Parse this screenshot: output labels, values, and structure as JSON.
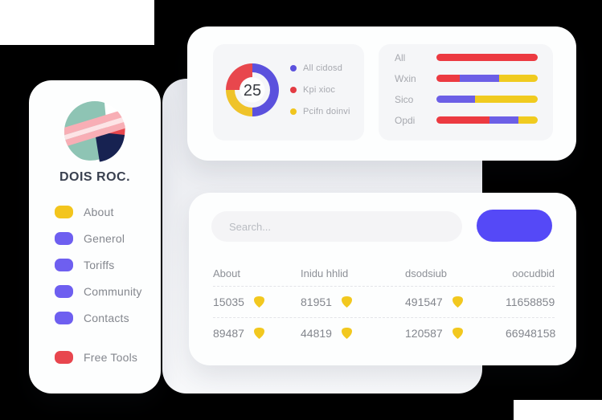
{
  "colors": {
    "indigo": "#5549f7",
    "bar_blue": "#6c5fe6",
    "donut_blue": "#5b51dd",
    "red": "#ec3a41",
    "yellow": "#f0cb1f",
    "badge_yellow": "#f2c81f",
    "menu_purple": "#6e5ff0",
    "menu_yellow": "#f3c51d",
    "menu_red": "#e8464e",
    "panel_gray": "#f5f6f8",
    "text_dark": "#3a4150",
    "text_gray": "#84878e"
  },
  "sidebar": {
    "brand": "DOIS ROC.",
    "items": [
      {
        "label": "About",
        "color": "#f3c51d"
      },
      {
        "label": "Generol",
        "color": "#6e5ff0"
      },
      {
        "label": "Toriffs",
        "color": "#6e5ff0"
      },
      {
        "label": "Community",
        "color": "#6e5ff0"
      },
      {
        "label": "Contacts",
        "color": "#6e5ff0"
      },
      {
        "label": "Free Tools",
        "color": "#e8464e"
      }
    ]
  },
  "stats_card": {
    "donut": {
      "type": "donut",
      "center_value": "25",
      "segments": [
        {
          "name": "All cidosd",
          "value": 50,
          "color": "#5b51dd"
        },
        {
          "name": "Kpi xioc",
          "value": 25,
          "color": "#e8474d"
        },
        {
          "name": "Pcifn doinvi",
          "value": 25,
          "color": "#efc32a"
        }
      ],
      "legend": [
        {
          "label": "All cidosd",
          "color": "#5b51dd"
        },
        {
          "label": "Kpi xioc",
          "color": "#e33b43"
        },
        {
          "label": "Pcifn doinvi",
          "color": "#f0c51e"
        }
      ]
    },
    "bar_chart": {
      "type": "stacked-horizontal-bar",
      "rows": [
        {
          "label": "All",
          "segments": [
            {
              "color": "#ec3a41",
              "pct": 100
            }
          ]
        },
        {
          "label": "Wxin",
          "segments": [
            {
              "color": "#ec3a41",
              "pct": 23
            },
            {
              "color": "#6c5fe6",
              "pct": 39
            },
            {
              "color": "#f0cb1f",
              "pct": 38
            }
          ]
        },
        {
          "label": "Sico",
          "segments": [
            {
              "color": "#6c5fe6",
              "pct": 38
            },
            {
              "color": "#f0cb1f",
              "pct": 62
            }
          ]
        },
        {
          "label": "Opdi",
          "segments": [
            {
              "color": "#ec3a41",
              "pct": 52
            },
            {
              "color": "#6c5fe6",
              "pct": 29
            },
            {
              "color": "#f0cb1f",
              "pct": 19
            }
          ]
        }
      ]
    }
  },
  "table_card": {
    "search_placeholder": "Search...",
    "columns": [
      "About",
      "Inidu hhlid",
      "dsodsiub",
      "oocudbid"
    ],
    "rows": [
      {
        "c0": "15035",
        "c1": "81951",
        "c2": "491547",
        "c3": "11658859"
      },
      {
        "c0": "89487",
        "c1": "44819",
        "c2": "120587",
        "c3": "66948158"
      }
    ]
  }
}
